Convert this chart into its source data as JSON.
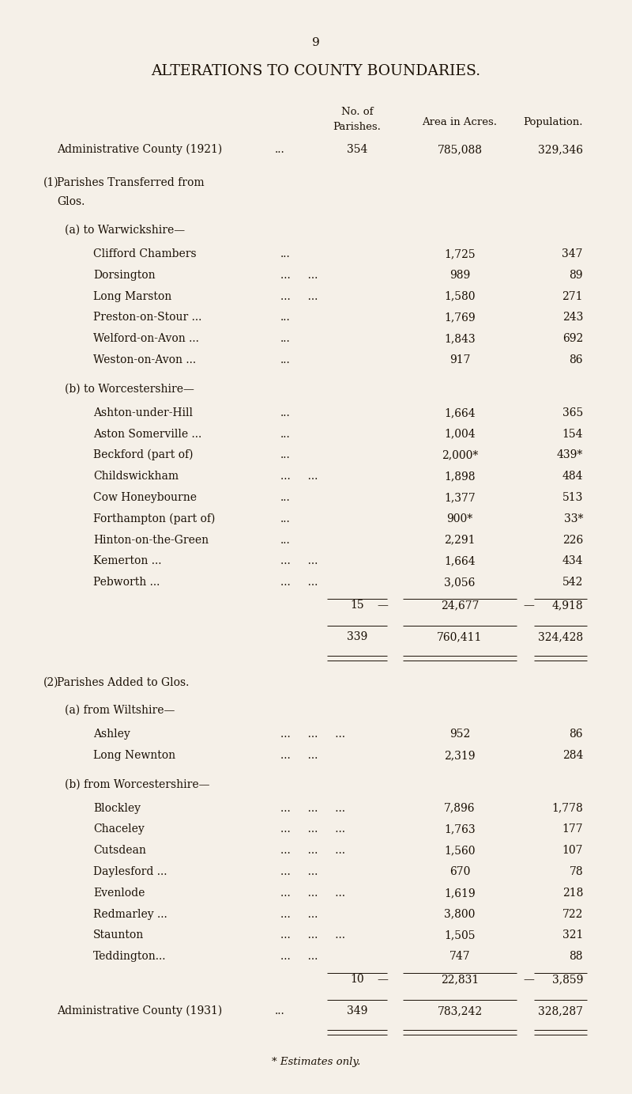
{
  "page_number": "9",
  "title": "ALTERATIONS TO COUNTY BOUNDARIES.",
  "bg_color": "#f5f0e8",
  "text_color": "#1a1005",
  "admin_county_1921_vals": [
    "354",
    "785,088",
    "329,346"
  ],
  "sec1a_rows": [
    [
      "Clifford Chambers",
      "...",
      "1,725",
      "347"
    ],
    [
      "Dorsington",
      "...     ...",
      "989",
      "89"
    ],
    [
      "Long Marston",
      "...     ...",
      "1,580",
      "271"
    ],
    [
      "Preston-on-Stour ...",
      "...",
      "1,769",
      "243"
    ],
    [
      "Welford-on-Avon ...",
      "...",
      "1,843",
      "692"
    ],
    [
      "Weston-on-Avon ...",
      "...",
      "917",
      "86"
    ]
  ],
  "sec1b_rows": [
    [
      "Ashton-under-Hill",
      "...",
      "1,664",
      "365"
    ],
    [
      "Aston Somerville ...",
      "...",
      "1,004",
      "154"
    ],
    [
      "Beckford (part of)",
      "...",
      "2,000*",
      "439*"
    ],
    [
      "Childswickham",
      "...     ...",
      "1,898",
      "484"
    ],
    [
      "Cow Honeybourne",
      "...",
      "1,377",
      "513"
    ],
    [
      "Forthampton (part of)",
      "...",
      "900*",
      "33*"
    ],
    [
      "Hinton-on-the-Green",
      "...",
      "2,291",
      "226"
    ],
    [
      "Kemerton ...",
      "...     ...",
      "1,664",
      "434"
    ],
    [
      "Pebworth ...",
      "...     ...",
      "3,056",
      "542"
    ]
  ],
  "sec1_subtotal": [
    "15",
    "24,677",
    "4,918"
  ],
  "sec1_total": [
    "339",
    "760,411",
    "324,428"
  ],
  "sec2a_rows": [
    [
      "Ashley",
      "...     ...     ...",
      "952",
      "86"
    ],
    [
      "Long Newnton",
      "...     ...",
      "2,319",
      "284"
    ]
  ],
  "sec2b_rows": [
    [
      "Blockley",
      "...     ...     ...",
      "7,896",
      "1,778"
    ],
    [
      "Chaceley",
      "...     ...     ...",
      "1,763",
      "177"
    ],
    [
      "Cutsdean",
      "...     ...     ...",
      "1,560",
      "107"
    ],
    [
      "Daylesford ...",
      "...     ...",
      "670",
      "78"
    ],
    [
      "Evenlode",
      "...     ...     ...",
      "1,619",
      "218"
    ],
    [
      "Redmarley ...",
      "...     ...",
      "3,800",
      "722"
    ],
    [
      "Staunton",
      "...     ...     ...",
      "1,505",
      "321"
    ],
    [
      "Teddington...",
      "...     ...",
      "747",
      "88"
    ]
  ],
  "sec2_subtotal": [
    "10",
    "22,831",
    "3,859"
  ],
  "admin_county_1931_vals": [
    "349",
    "783,242",
    "328,287"
  ]
}
